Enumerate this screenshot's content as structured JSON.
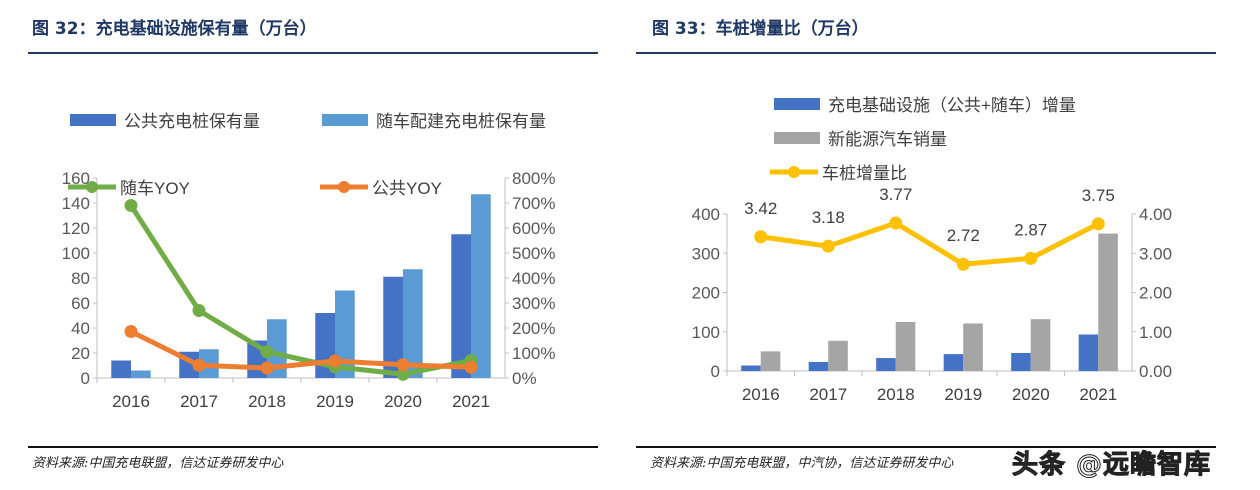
{
  "left": {
    "title": "图 32：充电基础设施保有量（万台）",
    "source": "资料来源:中国充电联盟，信达证券研发中心"
  },
  "right": {
    "title": "图 33：车桩增量比（万台）",
    "source": "资料来源:中国充电联盟，中汽协，信达证券研发中心"
  },
  "watermark": "头条 @远瞻智库",
  "chart_data": [
    {
      "type": "bar+line",
      "categories": [
        "2016",
        "2017",
        "2018",
        "2019",
        "2020",
        "2021"
      ],
      "ylim": [
        0,
        160
      ],
      "yticks": [
        "0",
        "20",
        "40",
        "60",
        "80",
        "100",
        "120",
        "140",
        "160"
      ],
      "y2lim": [
        0,
        800
      ],
      "y2ticks": [
        "0%",
        "100%",
        "200%",
        "300%",
        "400%",
        "500%",
        "600%",
        "700%",
        "800%"
      ],
      "series": [
        {
          "name": "公共充电桩保有量",
          "kind": "bar",
          "axis": "left",
          "color": "#4472c4",
          "values": [
            14,
            21,
            30,
            52,
            81,
            115
          ]
        },
        {
          "name": "随车配建充电桩保有量",
          "kind": "bar",
          "axis": "left",
          "color": "#5b9bd5",
          "values": [
            6,
            23,
            47,
            70,
            87,
            147
          ]
        },
        {
          "name": "随车YOY",
          "kind": "line",
          "axis": "right",
          "color": "#70ad47",
          "values": [
            690,
            270,
            105,
            45,
            15,
            70
          ]
        },
        {
          "name": "公共YOY",
          "kind": "line",
          "axis": "right",
          "color": "#ed7d31",
          "values": [
            186,
            51,
            40,
            68,
            53,
            43
          ]
        }
      ],
      "legend_position": "top"
    },
    {
      "type": "bar+line",
      "categories": [
        "2016",
        "2017",
        "2018",
        "2019",
        "2020",
        "2021"
      ],
      "ylim": [
        0,
        400
      ],
      "yticks": [
        "0",
        "100",
        "200",
        "300",
        "400"
      ],
      "y2lim": [
        0,
        4
      ],
      "y2ticks": [
        "0.00",
        "1.00",
        "2.00",
        "3.00",
        "4.00"
      ],
      "series": [
        {
          "name": "充电基础设施（公共+随车）增量",
          "kind": "bar",
          "axis": "left",
          "color": "#4472c4",
          "values": [
            14,
            23,
            33,
            43,
            46,
            93
          ]
        },
        {
          "name": "新能源汽车销量",
          "kind": "bar",
          "axis": "left",
          "color": "#a5a5a5",
          "values": [
            50,
            77,
            125,
            121,
            132,
            350
          ]
        },
        {
          "name": "车桩增量比",
          "kind": "line",
          "axis": "right",
          "color": "#ffc000",
          "values": [
            3.42,
            3.18,
            3.77,
            2.72,
            2.87,
            3.75
          ],
          "labels": [
            "3.42",
            "3.18",
            "3.77",
            "2.72",
            "2.87",
            "3.75"
          ]
        }
      ],
      "legend_position": "top-left"
    }
  ]
}
